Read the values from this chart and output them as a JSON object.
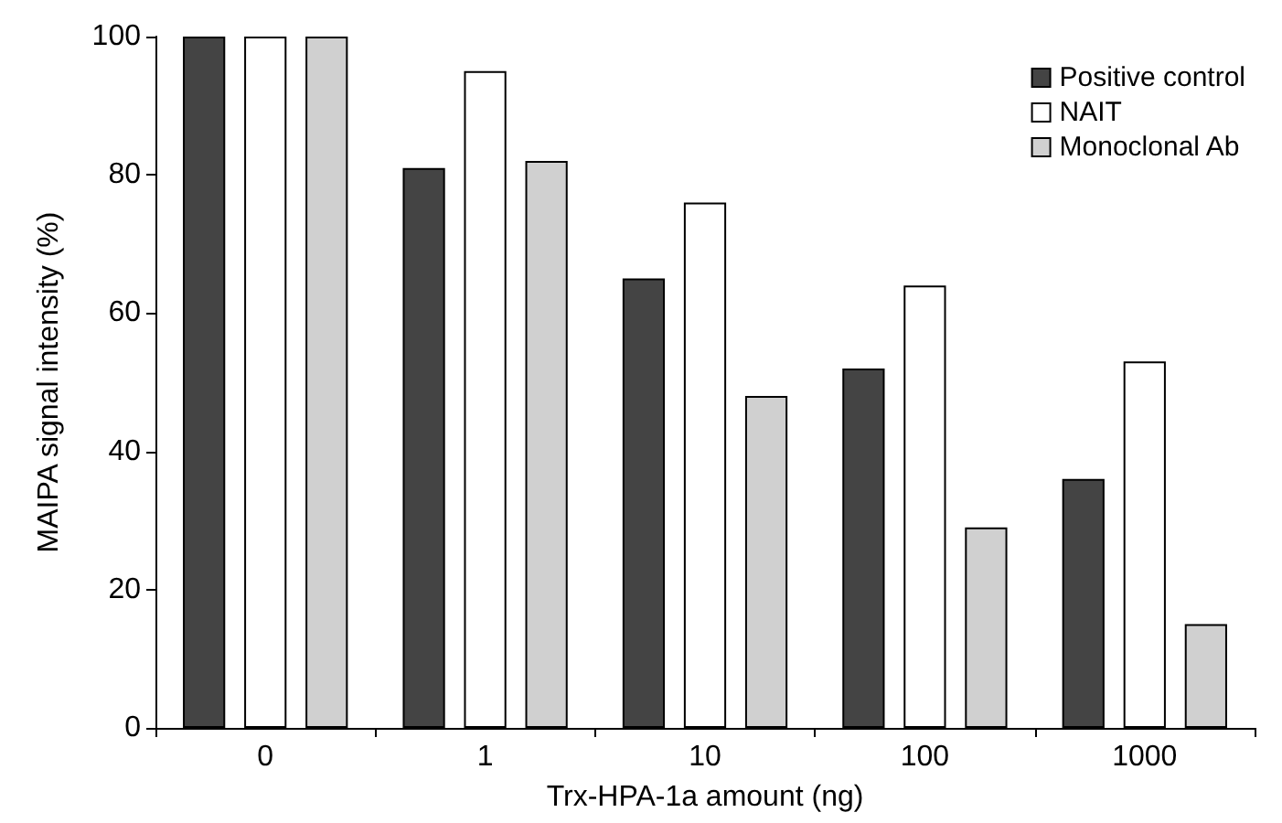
{
  "chart_data": {
    "type": "bar",
    "xlabel": "Trx-HPA-1a amount (ng)",
    "ylabel": "MAIPA signal intensity (%)",
    "categories": [
      "0",
      "1",
      "10",
      "100",
      "1000"
    ],
    "series": [
      {
        "name": "Positive control",
        "color": "#444444",
        "values": [
          100,
          81,
          65,
          52,
          36
        ]
      },
      {
        "name": "NAIT",
        "color": "#ffffff",
        "values": [
          100,
          95,
          76,
          64,
          53
        ]
      },
      {
        "name": "Monoclonal Ab",
        "color": "#d0d0d0",
        "values": [
          100,
          82,
          48,
          29,
          15
        ]
      }
    ],
    "ylim": [
      0,
      100
    ],
    "yticks": [
      0,
      20,
      40,
      60,
      80,
      100
    ],
    "grid": false,
    "legend": "top right"
  }
}
